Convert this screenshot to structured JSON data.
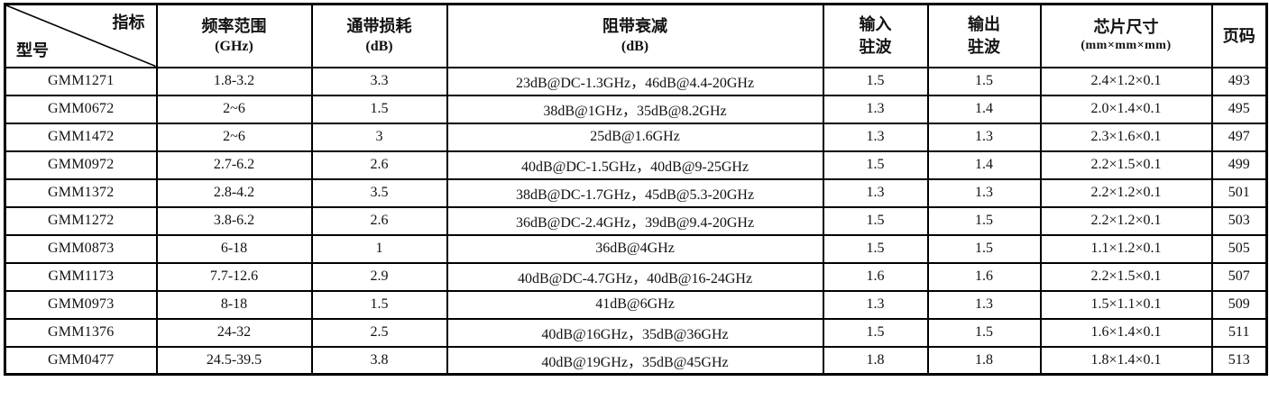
{
  "table": {
    "corner": {
      "top_right": "指标",
      "bottom_left": "型号"
    },
    "columns": [
      {
        "title": "频率范围",
        "subtitle": "(GHz)"
      },
      {
        "title": "通带损耗",
        "subtitle": "(dB)"
      },
      {
        "title": "阻带衰减",
        "subtitle": "(dB)"
      },
      {
        "title": "输入",
        "subtitle": "驻波"
      },
      {
        "title": "输出",
        "subtitle": "驻波"
      },
      {
        "title": "芯片尺寸",
        "subtitle": "(mm×mm×mm)"
      },
      {
        "title": "页码",
        "subtitle": ""
      }
    ],
    "rows": [
      [
        "GMM1271",
        "1.8-3.2",
        "3.3",
        "23dB@DC-1.3GHz，46dB@4.4-20GHz",
        "1.5",
        "1.5",
        "2.4×1.2×0.1",
        "493"
      ],
      [
        "GMM0672",
        "2~6",
        "1.5",
        "38dB@1GHz，35dB@8.2GHz",
        "1.3",
        "1.4",
        "2.0×1.4×0.1",
        "495"
      ],
      [
        "GMM1472",
        "2~6",
        "3",
        "25dB@1.6GHz",
        "1.3",
        "1.3",
        "2.3×1.6×0.1",
        "497"
      ],
      [
        "GMM0972",
        "2.7-6.2",
        "2.6",
        "40dB@DC-1.5GHz，40dB@9-25GHz",
        "1.5",
        "1.4",
        "2.2×1.5×0.1",
        "499"
      ],
      [
        "GMM1372",
        "2.8-4.2",
        "3.5",
        "38dB@DC-1.7GHz，45dB@5.3-20GHz",
        "1.3",
        "1.3",
        "2.2×1.2×0.1",
        "501"
      ],
      [
        "GMM1272",
        "3.8-6.2",
        "2.6",
        "36dB@DC-2.4GHz，39dB@9.4-20GHz",
        "1.5",
        "1.5",
        "2.2×1.2×0.1",
        "503"
      ],
      [
        "GMM0873",
        "6-18",
        "1",
        "36dB@4GHz",
        "1.5",
        "1.5",
        "1.1×1.2×0.1",
        "505"
      ],
      [
        "GMM1173",
        "7.7-12.6",
        "2.9",
        "40dB@DC-4.7GHz，40dB@16-24GHz",
        "1.6",
        "1.6",
        "2.2×1.5×0.1",
        "507"
      ],
      [
        "GMM0973",
        "8-18",
        "1.5",
        "41dB@6GHz",
        "1.3",
        "1.3",
        "1.5×1.1×0.1",
        "509"
      ],
      [
        "GMM1376",
        "24-32",
        "2.5",
        "40dB@16GHz，35dB@36GHz",
        "1.5",
        "1.5",
        "1.6×1.4×0.1",
        "511"
      ],
      [
        "GMM0477",
        "24.5-39.5",
        "3.8",
        "40dB@19GHz，35dB@45GHz",
        "1.8",
        "1.8",
        "1.8×1.4×0.1",
        "513"
      ]
    ],
    "column_names": [
      "model",
      "freq-range",
      "passband-loss",
      "stopband-rejection",
      "input-vswr",
      "output-vswr",
      "chip-size",
      "page-number"
    ]
  },
  "colors": {
    "border": "#000000",
    "text": "#111111",
    "background": "#ffffff"
  }
}
